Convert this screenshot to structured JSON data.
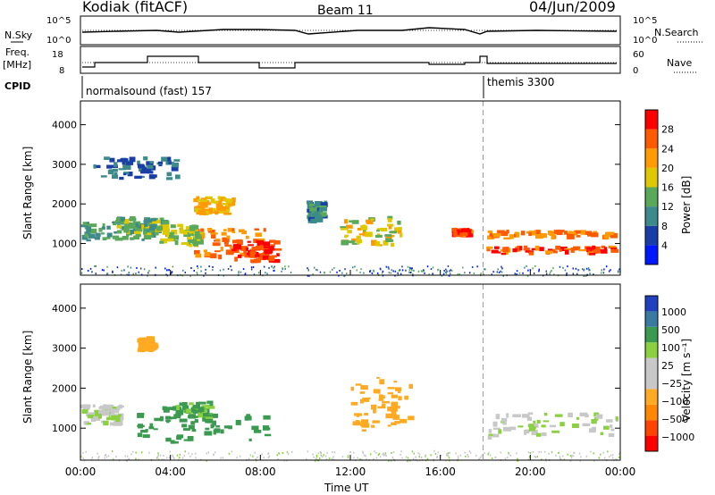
{
  "header": {
    "station": "Kodiak (fitACF)",
    "beam": "Beam 11",
    "date": "04/Jun/2009"
  },
  "summary": {
    "nsky_label": "N.Sky",
    "nsearch_label": "N.Search",
    "freq_label_1": "Freq.",
    "freq_label_2": "[MHz]",
    "nave_label": "Nave",
    "cpid_label": "CPID",
    "nsky_ticks": [
      "10^5",
      "10^0"
    ],
    "nsearch_ticks": [
      "10^5",
      "10^0"
    ],
    "freq_ticks": [
      "18",
      "8"
    ],
    "nave_ticks": [
      "60",
      "0"
    ],
    "cpid_segments": [
      {
        "start": "00:00",
        "label": "normalsound (fast) 157"
      },
      {
        "start": "17:54",
        "label": "themis 3300"
      }
    ]
  },
  "colors": {
    "power_scale": [
      "#0018ff",
      "#1a3ea8",
      "#3d8a8a",
      "#5aa85a",
      "#e0c800",
      "#ff9a00",
      "#ff5a00",
      "#ff0000"
    ],
    "velocity_scale": [
      "#ff0000",
      "#ff4400",
      "#ff8800",
      "#ffaa22",
      "#c8c8c8",
      "#c8c8c8",
      "#8ad040",
      "#3a9a50",
      "#3a7aa0",
      "#2040c0"
    ]
  },
  "chart_data": [
    {
      "type": "heatmap",
      "name": "Power",
      "ylabel": "Slant Range [km]",
      "yticks": [
        "1000",
        "2000",
        "3000",
        "4000"
      ],
      "ylim": [
        200,
        4600
      ],
      "xlim": [
        "00:00",
        "24:00"
      ],
      "colorbar_label": "Power [dB]",
      "colorbar_ticks": [
        "4",
        "8",
        "12",
        "16",
        "20",
        "24",
        "28"
      ],
      "colorbar_range": [
        0,
        32
      ],
      "data_gap": [
        "09:30",
        "10:00"
      ],
      "regions": [
        {
          "t0": 0.0,
          "t1": 3.5,
          "r0": 1050,
          "r1": 1600,
          "level": 12
        },
        {
          "t0": 1.5,
          "t1": 4.0,
          "r0": 1200,
          "r1": 1700,
          "level": 14
        },
        {
          "t0": 5.0,
          "t1": 8.5,
          "r0": 600,
          "r1": 1400,
          "level": 24
        },
        {
          "t0": 6.5,
          "t1": 9.0,
          "r0": 500,
          "r1": 1100,
          "level": 28
        },
        {
          "t0": 5.0,
          "t1": 7.0,
          "r0": 1700,
          "r1": 2200,
          "level": 20
        },
        {
          "t0": 3.5,
          "t1": 5.5,
          "r0": 900,
          "r1": 1500,
          "level": 16
        },
        {
          "t0": 11.5,
          "t1": 14.5,
          "r0": 900,
          "r1": 1700,
          "level": 18
        },
        {
          "t0": 10.0,
          "t1": 11.0,
          "r0": 1500,
          "r1": 2100,
          "level": 10
        },
        {
          "t0": 16.5,
          "t1": 17.5,
          "r0": 1150,
          "r1": 1400,
          "level": 26
        },
        {
          "t0": 18.0,
          "t1": 24.0,
          "r0": 1100,
          "r1": 1350,
          "level": 24
        },
        {
          "t0": 18.0,
          "t1": 24.0,
          "r0": 700,
          "r1": 950,
          "level": 26
        },
        {
          "t0": 0.5,
          "t1": 4.5,
          "r0": 2600,
          "r1": 3200,
          "level": 8
        }
      ]
    },
    {
      "type": "heatmap",
      "name": "Velocity",
      "xlabel": "Time UT",
      "ylabel": "Slant Range [km]",
      "yticks": [
        "1000",
        "2000",
        "3000",
        "4000"
      ],
      "ylim": [
        200,
        4600
      ],
      "xticks": [
        "00:00",
        "04:00",
        "08:00",
        "12:00",
        "16:00",
        "20:00",
        "00:00"
      ],
      "xlim": [
        "00:00",
        "24:00"
      ],
      "colorbar_label": "Velocity [m s⁻¹]",
      "colorbar_ticks": [
        "1000",
        "500",
        "100",
        "25",
        "−25",
        "−100",
        "−500",
        "−1000"
      ],
      "regions": [
        {
          "t0": 0.0,
          "t1": 2.0,
          "r0": 1050,
          "r1": 1600,
          "level": 0
        },
        {
          "t0": 2.5,
          "t1": 8.5,
          "r0": 600,
          "r1": 1400,
          "level": 200
        },
        {
          "t0": 3.5,
          "t1": 6.0,
          "r0": 1200,
          "r1": 1700,
          "level": 150
        },
        {
          "t0": 12.0,
          "t1": 15.0,
          "r0": 900,
          "r1": 2300,
          "level": -400
        },
        {
          "t0": 2.5,
          "t1": 3.5,
          "r0": 2900,
          "r1": 3300,
          "level": -300
        },
        {
          "t0": 18.0,
          "t1": 24.0,
          "r0": 700,
          "r1": 1400,
          "level": 0
        }
      ]
    }
  ]
}
